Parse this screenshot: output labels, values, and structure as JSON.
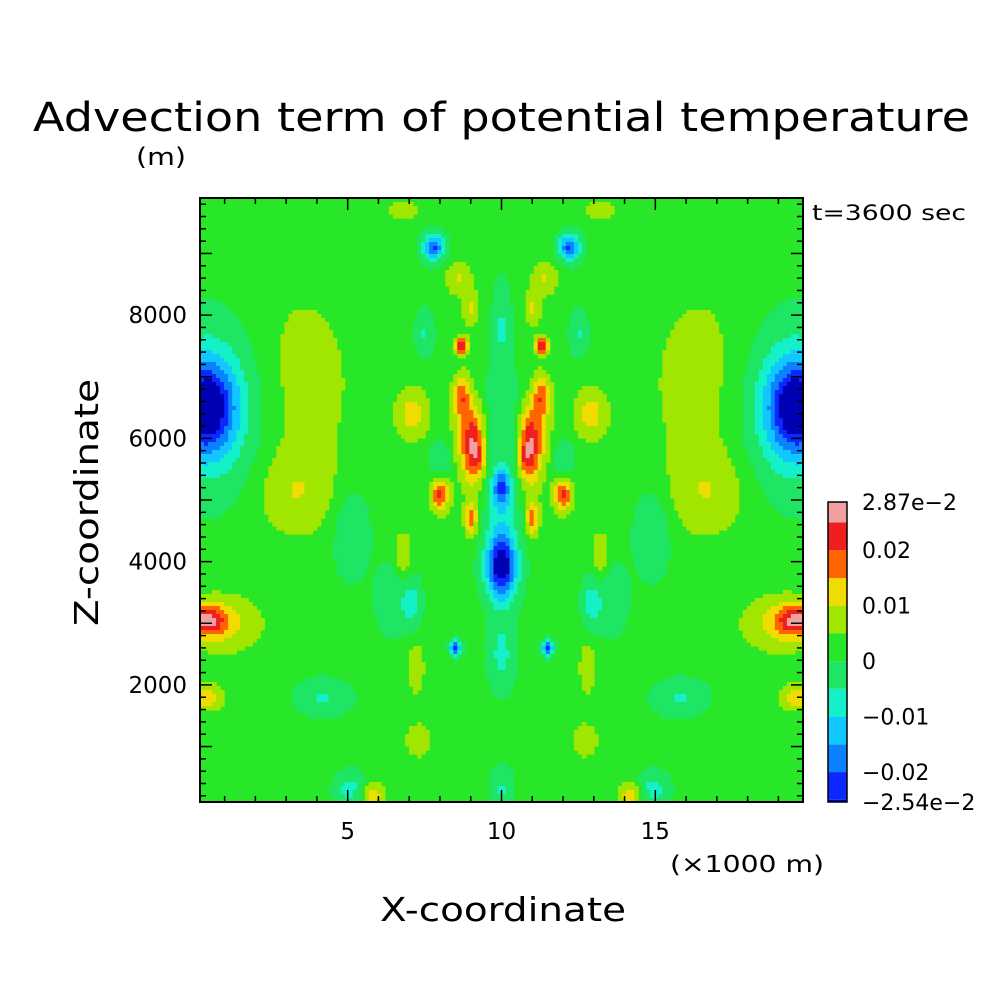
{
  "chart_data": {
    "type": "heatmap",
    "title": "Advection term of potential temperature",
    "units": "(m)",
    "time_label": "t=3600 sec",
    "xlabel": "X-coordinate",
    "x_unit_label": "(×1000 m)",
    "ylabel": "Z-coordinate",
    "xlim": [
      0.2,
      19.8
    ],
    "ylim": [
      100,
      9900
    ],
    "x_ticks": [
      5,
      10,
      15
    ],
    "x_tick_labels": [
      "5",
      "10",
      "15"
    ],
    "y_ticks": [
      2000,
      4000,
      6000,
      8000
    ],
    "y_tick_labels": [
      "2000",
      "4000",
      "6000",
      "8000"
    ],
    "colorbar": {
      "min": -0.0254,
      "max": 0.0287,
      "bins": [
        {
          "lower": -0.0254,
          "upper": -0.025,
          "color": "#0000b4"
        },
        {
          "lower": -0.025,
          "upper": -0.02,
          "color": "#0a28ff"
        },
        {
          "lower": -0.02,
          "upper": -0.015,
          "color": "#0a82ff"
        },
        {
          "lower": -0.015,
          "upper": -0.01,
          "color": "#10c8ff"
        },
        {
          "lower": -0.01,
          "upper": -0.005,
          "color": "#14f0c8"
        },
        {
          "lower": -0.005,
          "upper": 0,
          "color": "#1ee664"
        },
        {
          "lower": 0,
          "upper": 0.005,
          "color": "#28e628"
        },
        {
          "lower": 0.005,
          "upper": 0.01,
          "color": "#a0e600"
        },
        {
          "lower": 0.01,
          "upper": 0.015,
          "color": "#f0dc00"
        },
        {
          "lower": 0.015,
          "upper": 0.02,
          "color": "#ff6400"
        },
        {
          "lower": 0.02,
          "upper": 0.025,
          "color": "#f01e1e"
        },
        {
          "lower": 0.025,
          "upper": 0.0287,
          "color": "#f0a0a0"
        }
      ],
      "labels": [
        "2.87e−2",
        "0.02",
        "0.01",
        "0",
        "−0.01",
        "−0.02",
        "−2.54e−2"
      ],
      "label_values": [
        0.0287,
        0.02,
        0.01,
        0,
        -0.01,
        -0.02,
        -0.0254
      ]
    },
    "features": [
      {
        "x": 0.4,
        "z": 6500,
        "sx": 0.6,
        "sz": 500,
        "amp": -0.025
      },
      {
        "x": 0.6,
        "z": 6500,
        "sx": 1.2,
        "sz": 900,
        "amp": -0.012
      },
      {
        "x": 0.3,
        "z": 3050,
        "sx": 0.5,
        "sz": 180,
        "amp": 0.021
      },
      {
        "x": 1.0,
        "z": 3000,
        "sx": 0.9,
        "sz": 350,
        "amp": 0.009
      },
      {
        "x": 0.4,
        "z": 1800,
        "sx": 0.4,
        "sz": 150,
        "amp": 0.012
      },
      {
        "x": 3.3,
        "z": 5100,
        "sx": 0.9,
        "sz": 500,
        "amp": 0.007
      },
      {
        "x": 3.5,
        "z": 6900,
        "sx": 1.3,
        "sz": 1200,
        "amp": 0.006
      },
      {
        "x": 5.1,
        "z": 4500,
        "sx": 0.4,
        "sz": 500,
        "amp": -0.007
      },
      {
        "x": 6.5,
        "z": 3400,
        "sx": 0.4,
        "sz": 400,
        "amp": -0.006
      },
      {
        "x": 4.2,
        "z": 1800,
        "sx": 0.6,
        "sz": 200,
        "amp": -0.007
      },
      {
        "x": 5.1,
        "z": 300,
        "sx": 0.35,
        "sz": 200,
        "amp": -0.009
      },
      {
        "x": 5.8,
        "z": 200,
        "sx": 0.3,
        "sz": 150,
        "amp": 0.012
      },
      {
        "x": 7.1,
        "z": 6400,
        "sx": 0.4,
        "sz": 300,
        "amp": 0.011
      },
      {
        "x": 8.0,
        "z": 5100,
        "sx": 0.22,
        "sz": 200,
        "amp": 0.021
      },
      {
        "x": 8.7,
        "z": 6000,
        "sx": 0.3,
        "sz": 500,
        "amp": 0.006
      },
      {
        "x": 9.1,
        "z": 5900,
        "sx": 0.25,
        "sz": 450,
        "amp": 0.022
      },
      {
        "x": 9.3,
        "z": 5700,
        "sx": 0.15,
        "sz": 150,
        "amp": 0.006
      },
      {
        "x": 8.7,
        "z": 7500,
        "sx": 0.15,
        "sz": 100,
        "amp": 0.024
      },
      {
        "x": 8.6,
        "z": 8600,
        "sx": 0.3,
        "sz": 200,
        "amp": 0.009
      },
      {
        "x": 7.8,
        "z": 9100,
        "sx": 0.25,
        "sz": 150,
        "amp": -0.022
      },
      {
        "x": 8.5,
        "z": 2600,
        "sx": 0.12,
        "sz": 90,
        "amp": -0.022
      },
      {
        "x": 7.1,
        "z": 3300,
        "sx": 0.2,
        "sz": 300,
        "amp": -0.008
      },
      {
        "x": 6.8,
        "z": 4100,
        "sx": 0.2,
        "sz": 300,
        "amp": 0.008
      },
      {
        "x": 7.2,
        "z": 2300,
        "sx": 0.25,
        "sz": 400,
        "amp": 0.006
      },
      {
        "x": 8.0,
        "z": 5600,
        "sx": 0.25,
        "sz": 250,
        "amp": -0.007
      },
      {
        "x": 8.7,
        "z": 6700,
        "sx": 0.2,
        "sz": 250,
        "amp": 0.015
      },
      {
        "x": 7.5,
        "z": 7700,
        "sx": 0.2,
        "sz": 250,
        "amp": -0.007
      },
      {
        "x": 9.0,
        "z": 4700,
        "sx": 0.15,
        "sz": 200,
        "amp": 0.016
      },
      {
        "x": 9.0,
        "z": 8100,
        "sx": 0.2,
        "sz": 200,
        "amp": 0.009
      },
      {
        "x": 7.3,
        "z": 1100,
        "sx": 0.3,
        "sz": 200,
        "amp": 0.008
      },
      {
        "x": 6.8,
        "z": 9700,
        "sx": 0.4,
        "sz": 150,
        "amp": 0.006
      },
      {
        "x": 10.0,
        "z": 3900,
        "sx": 0.35,
        "sz": 350,
        "amp": -0.026
      },
      {
        "x": 10.0,
        "z": 5200,
        "sx": 0.2,
        "sz": 200,
        "amp": -0.019
      },
      {
        "x": 10.0,
        "z": 4500,
        "sx": 0.35,
        "sz": 700,
        "amp": -0.009
      },
      {
        "x": 10.0,
        "z": 2500,
        "sx": 0.3,
        "sz": 400,
        "amp": -0.008
      },
      {
        "x": 10.0,
        "z": 7800,
        "sx": 0.2,
        "sz": 500,
        "amp": -0.007
      },
      {
        "x": 10.0,
        "z": 300,
        "sx": 0.25,
        "sz": 250,
        "amp": -0.007
      },
      {
        "x": 10.0,
        "z": 6300,
        "sx": 0.5,
        "sz": 600,
        "amp": -0.005
      }
    ]
  }
}
